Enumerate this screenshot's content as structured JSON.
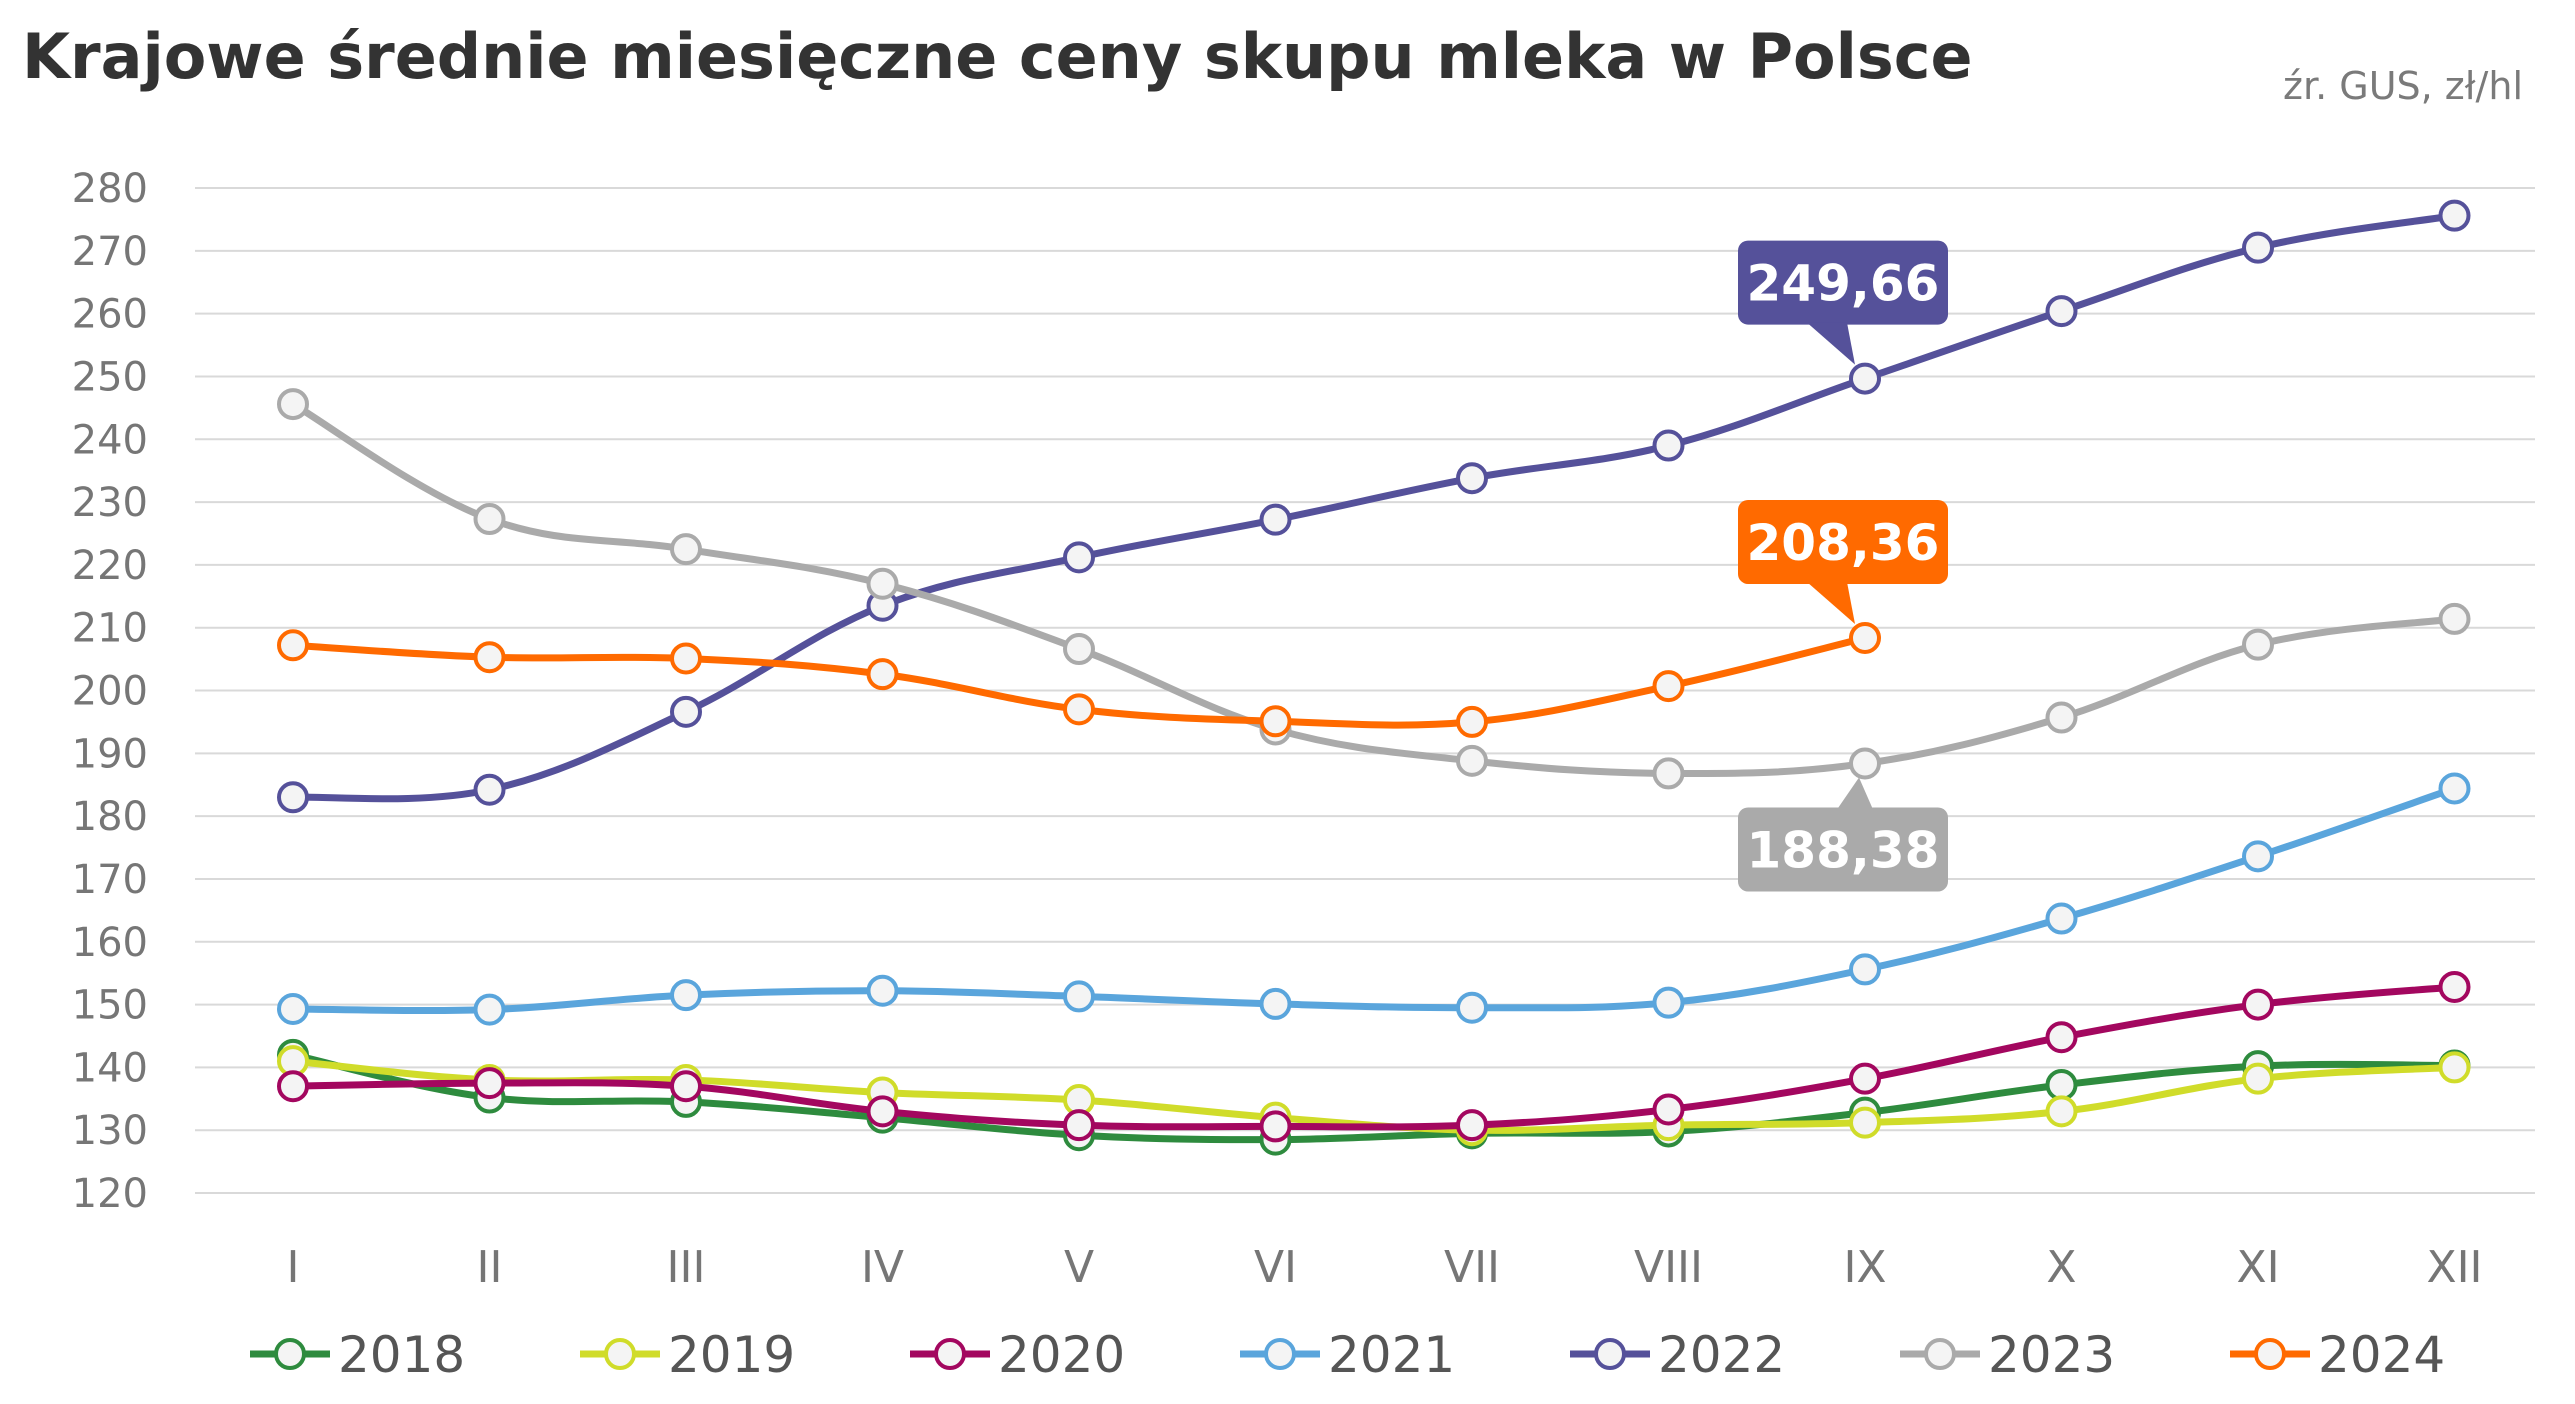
{
  "chart_data": {
    "type": "line",
    "title": "Krajowe średnie miesięczne ceny skupu mleka w Polsce",
    "source": "źr. GUS, zł/hl",
    "categories": [
      "I",
      "II",
      "III",
      "IV",
      "V",
      "VI",
      "VII",
      "VIII",
      "IX",
      "X",
      "XI",
      "XII"
    ],
    "ylim": [
      120,
      280
    ],
    "yticks": [
      120,
      130,
      140,
      150,
      160,
      170,
      180,
      190,
      200,
      210,
      220,
      230,
      240,
      250,
      260,
      270,
      280
    ],
    "xlabel": "",
    "ylabel": "",
    "grid": true,
    "legend_position": "bottom",
    "series": [
      {
        "name": "2018",
        "color": "#2e8b3e",
        "values": [
          142.0,
          135.2,
          134.5,
          132.0,
          129.2,
          128.5,
          129.5,
          129.8,
          132.8,
          137.2,
          140.2,
          140.3
        ]
      },
      {
        "name": "2019",
        "color": "#d0dc2a",
        "values": [
          141.0,
          138.0,
          138.0,
          136.0,
          134.8,
          132.0,
          130.0,
          130.8,
          131.2,
          133.0,
          138.2,
          140.0
        ]
      },
      {
        "name": "2020",
        "color": "#a3075f",
        "values": [
          137.0,
          137.5,
          137.0,
          133.0,
          130.8,
          130.6,
          130.8,
          133.3,
          138.2,
          144.8,
          150.0,
          152.8
        ]
      },
      {
        "name": "2021",
        "color": "#5aa5dc",
        "values": [
          149.3,
          149.2,
          151.5,
          152.2,
          151.3,
          150.1,
          149.5,
          150.3,
          155.6,
          163.7,
          173.6,
          184.4
        ]
      },
      {
        "name": "2022",
        "color": "#55519a",
        "values": [
          183.0,
          184.2,
          196.6,
          213.5,
          221.2,
          227.2,
          233.8,
          239.0,
          249.66,
          260.4,
          270.5,
          275.6
        ]
      },
      {
        "name": "2023",
        "color": "#aaaaaa",
        "values": [
          245.6,
          227.3,
          222.5,
          217.0,
          206.6,
          193.8,
          188.8,
          186.8,
          188.38,
          195.7,
          207.3,
          211.4
        ]
      },
      {
        "name": "2024",
        "color": "#ff6a00",
        "values": [
          207.2,
          205.3,
          205.1,
          202.6,
          197.0,
          195.1,
          195.0,
          200.7,
          208.36,
          null,
          null,
          null
        ]
      }
    ],
    "annotations": [
      {
        "series": "2022",
        "category": "IX",
        "label": "249,66",
        "color": "#55519a",
        "placement": "above"
      },
      {
        "series": "2024",
        "category": "IX",
        "label": "208,36",
        "color": "#ff6a00",
        "placement": "above"
      },
      {
        "series": "2023",
        "category": "IX",
        "label": "188,38",
        "color": "#aaaaaa",
        "placement": "below"
      }
    ]
  }
}
